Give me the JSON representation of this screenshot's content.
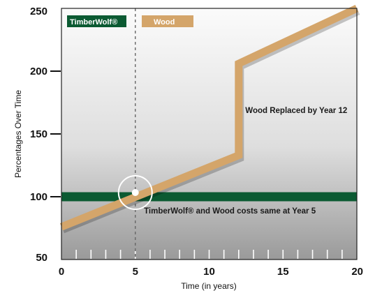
{
  "chart_data": {
    "type": "line",
    "xlabel": "Time (in years)",
    "ylabel": "Percentages Over Time",
    "xlim": [
      0,
      20
    ],
    "ylim": [
      50,
      250
    ],
    "x_ticks": [
      "0",
      "5",
      "10",
      "15",
      "20"
    ],
    "y_ticks": [
      "50",
      "100",
      "150",
      "200",
      "250"
    ],
    "legend": [
      {
        "name": "TimberWolf®",
        "color": "#0b5a32"
      },
      {
        "name": "Wood",
        "color": "#d4a56a"
      }
    ],
    "series": [
      {
        "name": "TimberWolf®",
        "color": "#0b5a32",
        "x": [
          0,
          20
        ],
        "y": [
          100,
          100
        ]
      },
      {
        "name": "Wood",
        "color": "#d4a56a",
        "x": [
          0,
          12,
          12,
          20
        ],
        "y": [
          76,
          133,
          206,
          250
        ]
      }
    ],
    "reference_line_x": 5,
    "highlight_point": {
      "x": 5,
      "y": 100
    },
    "annotations": [
      {
        "text": "Wood Replaced by Year 12",
        "x": 15.9,
        "y": 169
      },
      {
        "text": "TimberWolf® and Wood costs same at Year 5",
        "x": 11.4,
        "y": 89
      }
    ],
    "grid": false,
    "legend_position": "top-left"
  }
}
